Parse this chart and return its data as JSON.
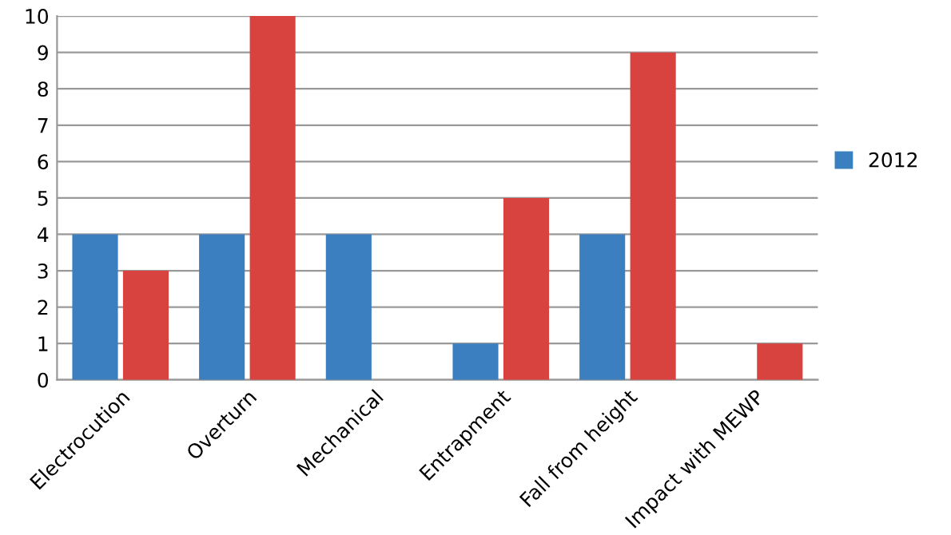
{
  "chart_data": {
    "type": "bar",
    "categories": [
      "Electrocution",
      "Overturn",
      "Mechanical",
      "Entrapment",
      "Fall from height",
      "Impact with MEWP"
    ],
    "series": [
      {
        "name": "2012",
        "color": "#3b7fc0",
        "values": [
          4,
          4,
          4,
          1,
          4,
          0
        ]
      },
      {
        "color": "#d9433f",
        "values": [
          3,
          10,
          0,
          5,
          9,
          1
        ]
      }
    ],
    "ylim": [
      0,
      10
    ],
    "yticks": [
      0,
      1,
      2,
      3,
      4,
      5,
      6,
      7,
      8,
      9,
      10
    ],
    "grid": "y",
    "legend": "right"
  }
}
